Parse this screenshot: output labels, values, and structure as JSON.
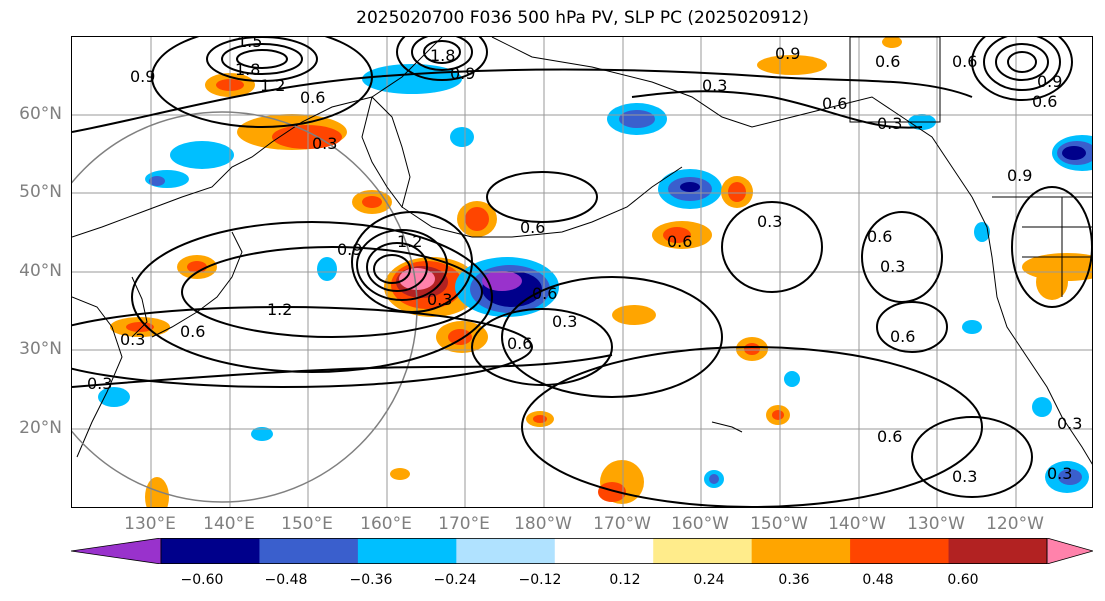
{
  "title": "2025020700 F036 500 hPa PV, SLP PC (2025020912)",
  "latitude_labels": [
    "60°N",
    "50°N",
    "40°N",
    "30°N",
    "20°N"
  ],
  "longitude_labels": [
    "130°E",
    "140°E",
    "150°E",
    "160°E",
    "170°E",
    "180°W",
    "170°W",
    "160°W",
    "150°W",
    "140°W",
    "130°W",
    "120°W"
  ],
  "colorbar": {
    "tick_labels": [
      "−0.60",
      "−0.48",
      "−0.36",
      "−0.24",
      "−0.12",
      "0.12",
      "0.24",
      "0.36",
      "0.48",
      "0.60"
    ],
    "colors": [
      "#9932cc",
      "#00008b",
      "#3a5fcd",
      "#00bfff",
      "#b0e2ff",
      "#ffffff",
      "#ffec8b",
      "#ffa500",
      "#ff4500",
      "#b22222",
      "#ff82ab"
    ]
  },
  "contour_labels": [
    "1.5",
    "1.8",
    "1.2",
    "0.9",
    "0.6",
    "0.3",
    "1.8",
    "0.9",
    "0.3",
    "0.6",
    "0.9",
    "0.6",
    "0.3",
    "0.6",
    "0.9",
    "0.6",
    "0.6",
    "1.2",
    "0.9",
    "1.2",
    "0.3",
    "0.6",
    "0.3",
    "0.6",
    "0.3",
    "0.6",
    "0.3",
    "0.3",
    "0.6",
    "0.6",
    "0.3",
    "0.3",
    "0.6",
    "0.3",
    "0.6",
    "0.9",
    "0.3"
  ],
  "colors": {
    "grid": "#999999",
    "contour": "#000000",
    "circle": "#808080",
    "axis_text": "#7f7f7f"
  }
}
